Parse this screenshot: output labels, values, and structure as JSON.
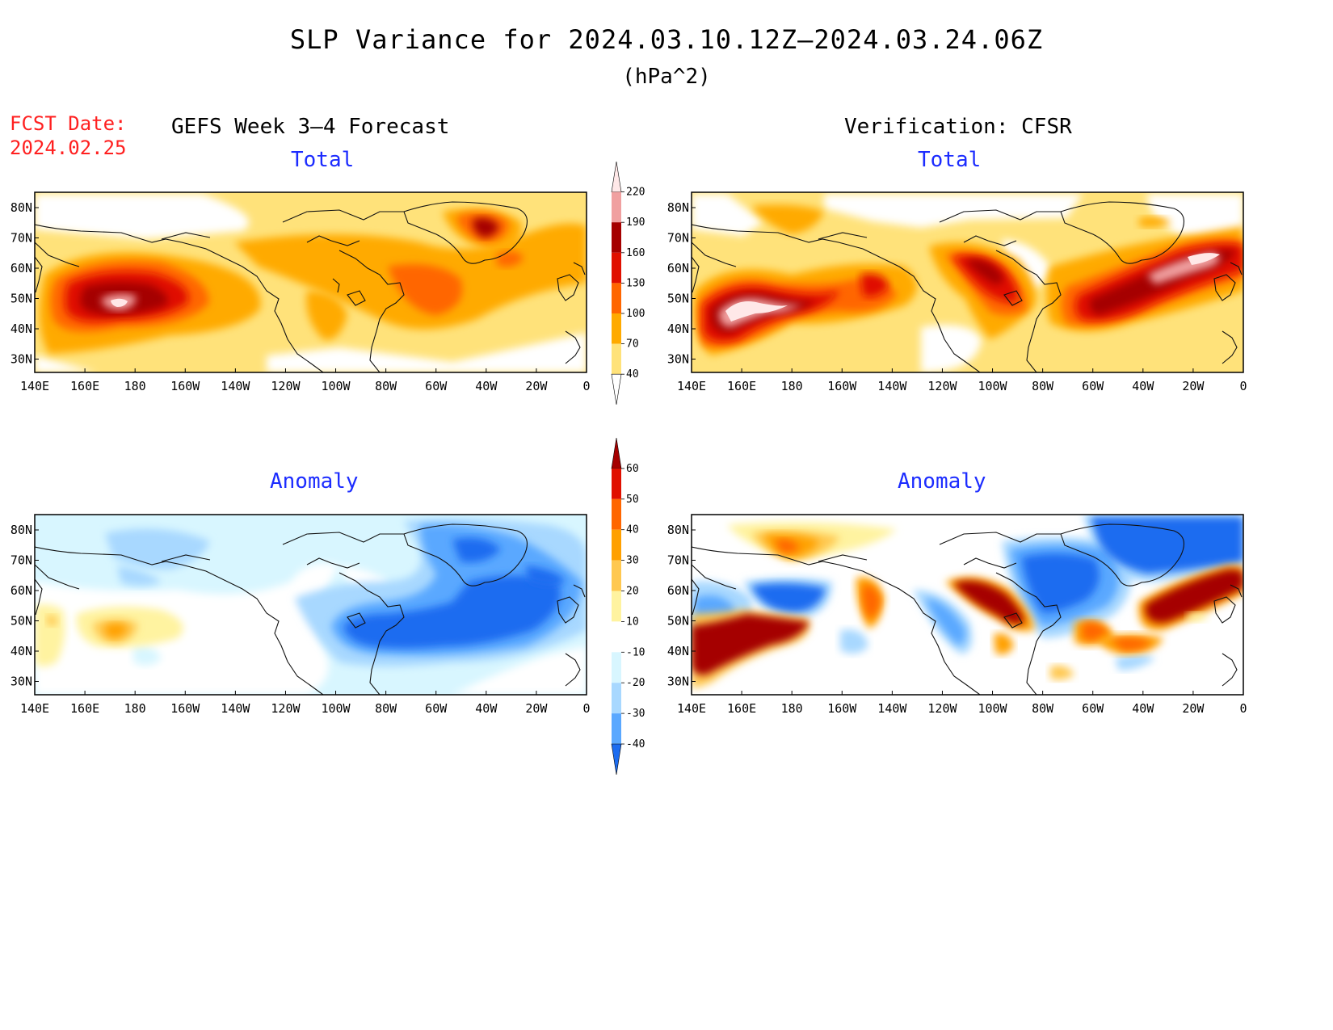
{
  "title": "SLP Variance for 2024.03.10.12Z–2024.03.24.06Z",
  "units": "(hPa^2)",
  "fcst_date": {
    "label": "FCST Date:",
    "value": "2024.02.25"
  },
  "columns": {
    "left": "GEFS Week 3–4 Forecast",
    "right": "Verification: CFSR"
  },
  "panels": [
    {
      "id": "fcst-total",
      "title": "Total"
    },
    {
      "id": "verif-total",
      "title": "Total"
    },
    {
      "id": "fcst-anom",
      "title": "Anomaly"
    },
    {
      "id": "verif-anom",
      "title": "Anomaly"
    }
  ],
  "axes": {
    "lon_labels": [
      "140E",
      "160E",
      "180",
      "160W",
      "140W",
      "120W",
      "100W",
      "80W",
      "60W",
      "40W",
      "20W",
      "0"
    ],
    "lat_labels": [
      "80N",
      "70N",
      "60N",
      "50N",
      "40N",
      "30N"
    ]
  },
  "colorbars": {
    "total": {
      "levels": [
        "40",
        "70",
        "100",
        "130",
        "160",
        "190",
        "220"
      ],
      "colors": [
        "#ffffff",
        "#ffe27a",
        "#ffaa00",
        "#ff6600",
        "#e01000",
        "#a50000",
        "#f0a0a0",
        "#ffe8e8"
      ]
    },
    "anomaly": {
      "levels": [
        "60",
        "50",
        "40",
        "30",
        "20",
        "10",
        "-10",
        "-20",
        "-30",
        "-40"
      ],
      "colors": [
        "#a50000",
        "#e01000",
        "#ff6600",
        "#ffa000",
        "#ffc850",
        "#fff3a0",
        "#ffffff",
        "#d8f6ff",
        "#a8d8ff",
        "#5aa8ff",
        "#1c6cf0"
      ]
    }
  }
}
